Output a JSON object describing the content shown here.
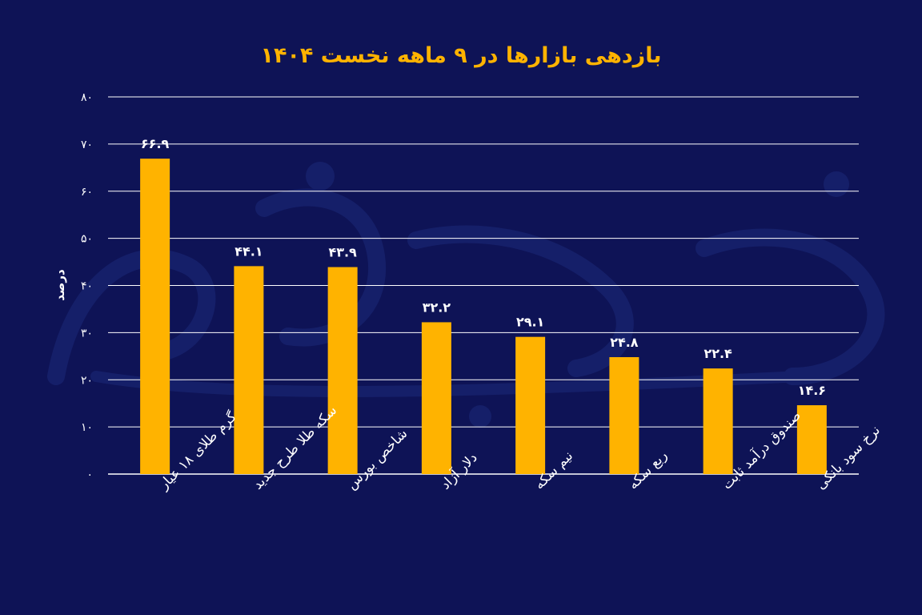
{
  "colors": {
    "background": "#0e1356",
    "bar": "#ffb300",
    "title": "#ffb300",
    "grid": "#ffffff",
    "text": "#ffffff",
    "watermark": "#1c2a7a"
  },
  "chart_data": {
    "type": "bar",
    "title": "بازدهی بازارها در ۹ ماهه نخست ۱۴۰۴",
    "ylabel": "درصد",
    "xlabel": "",
    "ylim": [
      0,
      80
    ],
    "yticks": [
      0,
      10,
      20,
      30,
      40,
      50,
      60,
      70,
      80
    ],
    "ytick_labels": [
      "۰",
      "۱۰",
      "۲۰",
      "۳۰",
      "۴۰",
      "۵۰",
      "۶۰",
      "۷۰",
      "۸۰"
    ],
    "grid": true,
    "categories": [
      "گرم طلای ۱۸ عیار",
      "سکه طلا طرح جدید",
      "شاخص بورس",
      "دلار آزاد",
      "نیم سکه",
      "ربع سکه",
      "صندوق درآمد ثابت",
      "نرخ سود بانکی"
    ],
    "values": [
      66.9,
      44.1,
      43.9,
      32.2,
      29.1,
      24.8,
      22.4,
      14.6
    ],
    "value_labels": [
      "۶۶.۹",
      "۴۴.۱",
      "۴۳.۹",
      "۳۲.۲",
      "۲۹.۱",
      "۲۴.۸",
      "۲۲.۴",
      "۱۴.۶"
    ]
  }
}
